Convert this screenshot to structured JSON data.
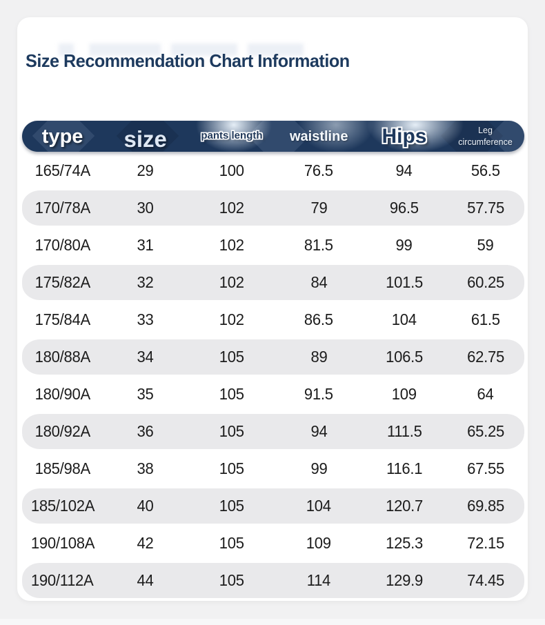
{
  "page": {
    "title": "Size Recommendation Chart Information"
  },
  "colors": {
    "page_background": "#f1f1f2",
    "card_background": "#ffffff",
    "header_navy": "#1e385c",
    "row_stripe": "#e9e9eb",
    "title_text": "#1d3a5e",
    "cell_text": "#1c1c1c"
  },
  "table": {
    "columns": [
      {
        "key": "type",
        "label": "type"
      },
      {
        "key": "size",
        "label": "size"
      },
      {
        "key": "pants_length",
        "label": "pants length"
      },
      {
        "key": "waistline",
        "label": "waistline"
      },
      {
        "key": "hips",
        "label": "Hips"
      },
      {
        "key": "leg_circumference",
        "label": "Leg circumference"
      }
    ],
    "rows": [
      [
        "165/74A",
        "29",
        "100",
        "76.5",
        "94",
        "56.5"
      ],
      [
        "170/78A",
        "30",
        "102",
        "79",
        "96.5",
        "57.75"
      ],
      [
        "170/80A",
        "31",
        "102",
        "81.5",
        "99",
        "59"
      ],
      [
        "175/82A",
        "32",
        "102",
        "84",
        "101.5",
        "60.25"
      ],
      [
        "175/84A",
        "33",
        "102",
        "86.5",
        "104",
        "61.5"
      ],
      [
        "180/88A",
        "34",
        "105",
        "89",
        "106.5",
        "62.75"
      ],
      [
        "180/90A",
        "35",
        "105",
        "91.5",
        "109",
        "64"
      ],
      [
        "180/92A",
        "36",
        "105",
        "94",
        "111.5",
        "65.25"
      ],
      [
        "185/98A",
        "38",
        "105",
        "99",
        "116.1",
        "67.55"
      ],
      [
        "185/102A",
        "40",
        "105",
        "104",
        "120.7",
        "69.85"
      ],
      [
        "190/108A",
        "42",
        "105",
        "109",
        "125.3",
        "72.15"
      ],
      [
        "190/112A",
        "44",
        "105",
        "114",
        "129.9",
        "74.45"
      ]
    ]
  }
}
